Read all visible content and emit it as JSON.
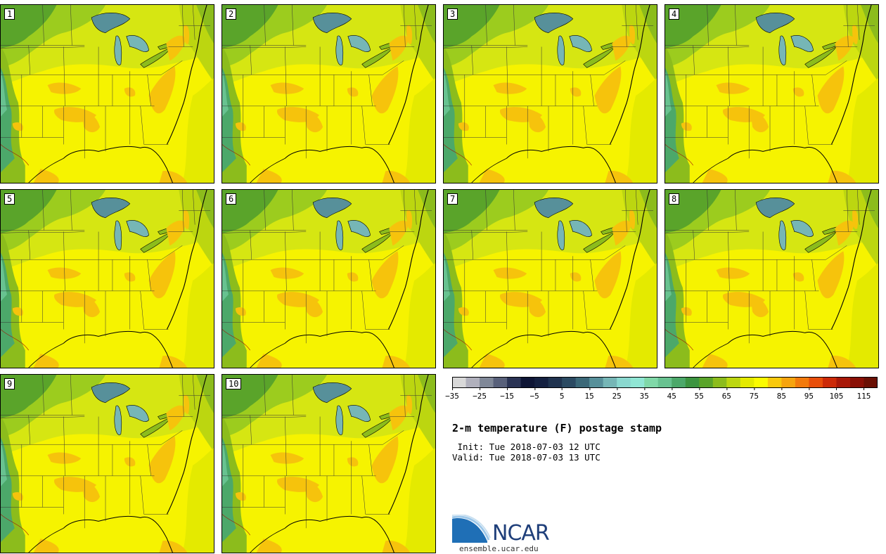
{
  "panels": [
    {
      "label": "1"
    },
    {
      "label": "2"
    },
    {
      "label": "3"
    },
    {
      "label": "4"
    },
    {
      "label": "5"
    },
    {
      "label": "6"
    },
    {
      "label": "7"
    },
    {
      "label": "8"
    },
    {
      "label": "9"
    },
    {
      "label": "10"
    }
  ],
  "colorbar": {
    "colors": [
      "#d8d8d8",
      "#b0b0bc",
      "#808898",
      "#58607a",
      "#2a3354",
      "#0e1535",
      "#142040",
      "#20334f",
      "#2b4a62",
      "#3b6878",
      "#57909a",
      "#76b6b6",
      "#8ad8cf",
      "#90e6d4",
      "#80d8a8",
      "#68c290",
      "#4ca86a",
      "#3c9440",
      "#5aa42a",
      "#8cbc1c",
      "#bcd610",
      "#e4ea00",
      "#fbfb00",
      "#f9c90c",
      "#f6a40e",
      "#f27a0c",
      "#e84e0a",
      "#cc2a08",
      "#a81808",
      "#8a1006",
      "#6a1004"
    ],
    "tick_labels": [
      "−35",
      "−25",
      "−15",
      "−5",
      "5",
      "15",
      "25",
      "35",
      "45",
      "55",
      "65",
      "75",
      "85",
      "95",
      "105",
      "115"
    ]
  },
  "title": "2-m temperature (F) postage stamp",
  "init": " Init: Tue 2018-07-03 12 UTC",
  "valid": "Valid: Tue 2018-07-03 13 UTC",
  "logo": {
    "text": "NCAR",
    "site": "ensemble.ucar.edu"
  }
}
